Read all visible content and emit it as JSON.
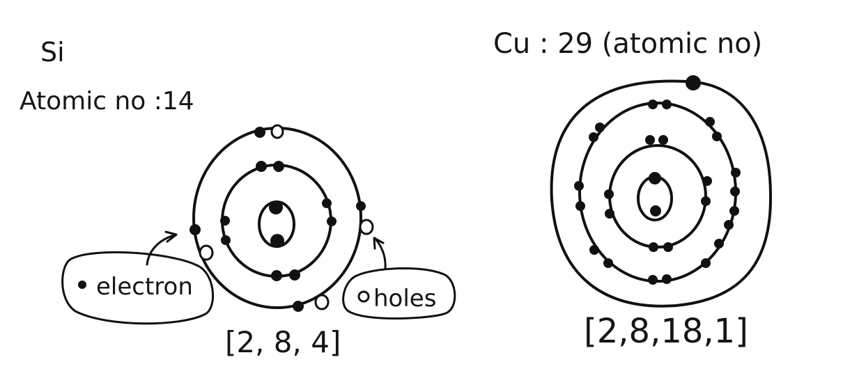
{
  "left_atom": {
    "symbol": "Si",
    "atomic_label": "Atomic no :14",
    "configuration": "[2, 8, 4]",
    "legend": {
      "electron_label": "electron",
      "holes_label": "holes"
    }
  },
  "right_atom": {
    "title": "Cu : 29 (atomic no)",
    "configuration": "[2,8,18,1]"
  }
}
